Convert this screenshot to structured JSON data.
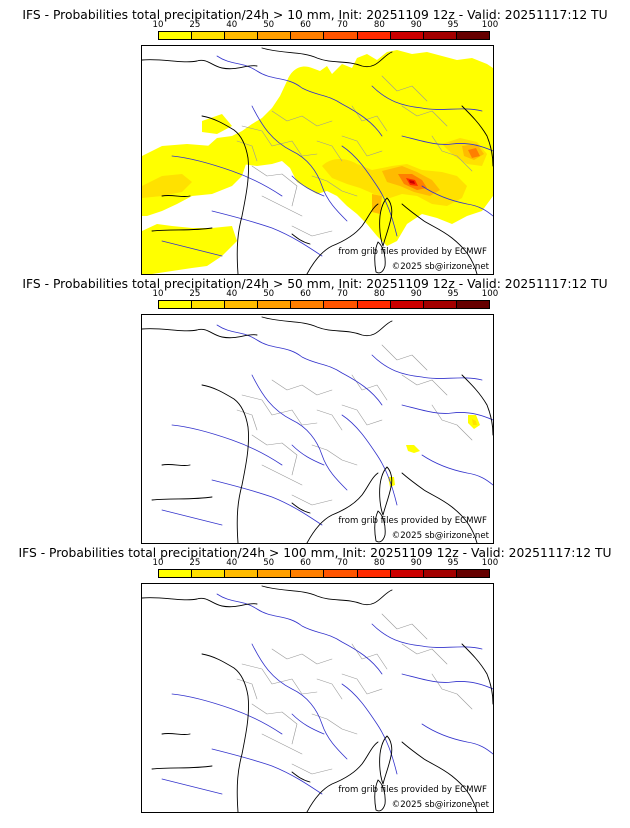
{
  "colorbar": {
    "ticks": [
      "10",
      "25",
      "40",
      "50",
      "60",
      "70",
      "80",
      "90",
      "95",
      "100"
    ],
    "colors": [
      "#ffff00",
      "#ffe100",
      "#ffbb00",
      "#ff9f00",
      "#ff7f00",
      "#ff5400",
      "#ff2a00",
      "#cc0000",
      "#a30000",
      "#660000"
    ]
  },
  "panels": [
    {
      "title": "IFS - Probabilities total precipitation/24h > 10 mm, Init: 20251109 12z - Valid: 20251117:12 TU",
      "credit_source": "from grib files provided by ECMWF",
      "credit_copyright": "©2025 sb@irizone.net",
      "precip_extent": "widespread"
    },
    {
      "title": "IFS - Probabilities total precipitation/24h > 50 mm, Init: 20251109 12z - Valid: 20251117:12 TU",
      "credit_source": "from grib files provided by ECMWF",
      "credit_copyright": "©2025 sb@irizone.net",
      "precip_extent": "isolated"
    },
    {
      "title": "IFS - Probabilities total precipitation/24h > 100 mm, Init: 20251109 12z - Valid: 20251117:12 TU",
      "credit_source": "from grib files provided by ECMWF",
      "credit_copyright": "©2025 sb@irizone.net",
      "precip_extent": "none"
    }
  ],
  "map_colors": {
    "coast": "#000000",
    "rivers": "#3333cc",
    "regions": "#999999"
  }
}
